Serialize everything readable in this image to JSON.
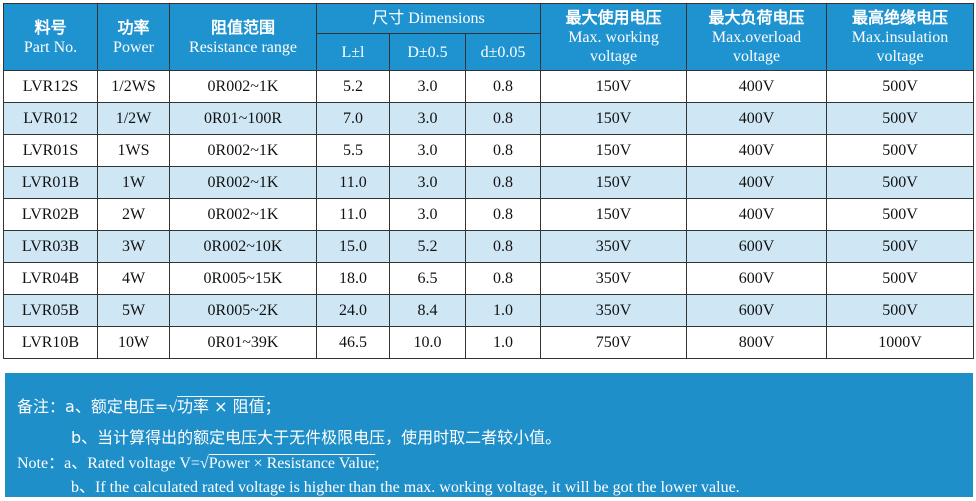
{
  "table": {
    "header": [
      {
        "zh": "料号",
        "en": "Part No."
      },
      {
        "zh": "功率",
        "en": "Power"
      },
      {
        "zh": "阻值范围",
        "en": "Resistance range"
      },
      {
        "zh": "最大使用电压",
        "en": "Max. working voltage"
      },
      {
        "zh": "最大负荷电压",
        "en": "Max.overload voltage"
      },
      {
        "zh": "最高绝缘电压",
        "en": "Max.insulation voltage"
      }
    ],
    "dimensions": {
      "title": "尺寸 Dimensions",
      "columns": [
        "L±l",
        "D±0.5",
        "d±0.05"
      ]
    },
    "rows": [
      [
        "LVR12S",
        "1/2WS",
        "0R002~1K",
        "5.2",
        "3.0",
        "0.8",
        "150V",
        "400V",
        "500V"
      ],
      [
        "LVR012",
        "1/2W",
        "0R01~100R",
        "7.0",
        "3.0",
        "0.8",
        "150V",
        "400V",
        "500V"
      ],
      [
        "LVR01S",
        "1WS",
        "0R002~1K",
        "5.5",
        "3.0",
        "0.8",
        "150V",
        "400V",
        "500V"
      ],
      [
        "LVR01B",
        "1W",
        "0R002~1K",
        "11.0",
        "3.0",
        "0.8",
        "150V",
        "400V",
        "500V"
      ],
      [
        "LVR02B",
        "2W",
        "0R002~1K",
        "11.0",
        "3.0",
        "0.8",
        "150V",
        "400V",
        "500V"
      ],
      [
        "LVR03B",
        "3W",
        "0R002~10K",
        "15.0",
        "5.2",
        "0.8",
        "350V",
        "600V",
        "500V"
      ],
      [
        "LVR04B",
        "4W",
        "0R005~15K",
        "18.0",
        "6.5",
        "0.8",
        "350V",
        "600V",
        "500V"
      ],
      [
        "LVR05B",
        "5W",
        "0R005~2K",
        "24.0",
        "8.4",
        "1.0",
        "350V",
        "600V",
        "500V"
      ],
      [
        "LVR10B",
        "10W",
        "0R01~39K",
        "46.5",
        "10.0",
        "1.0",
        "750V",
        "800V",
        "1000V"
      ]
    ]
  },
  "notes": {
    "zh": {
      "label": "备注：",
      "a": [
        "a、额定电压=",
        "√",
        "功率 × 阻值",
        "；"
      ],
      "b": "b、当计算得出的额定电压大于无件极限电压，使用时取二者较小值。"
    },
    "en": {
      "label": "Note：",
      "a": [
        "a、Rated voltage V=",
        "√",
        "Power × Resistance Value",
        ";"
      ],
      "b": "b、If the calculated rated voltage is higher than the max. working voltage, it will be got the lower value."
    }
  }
}
